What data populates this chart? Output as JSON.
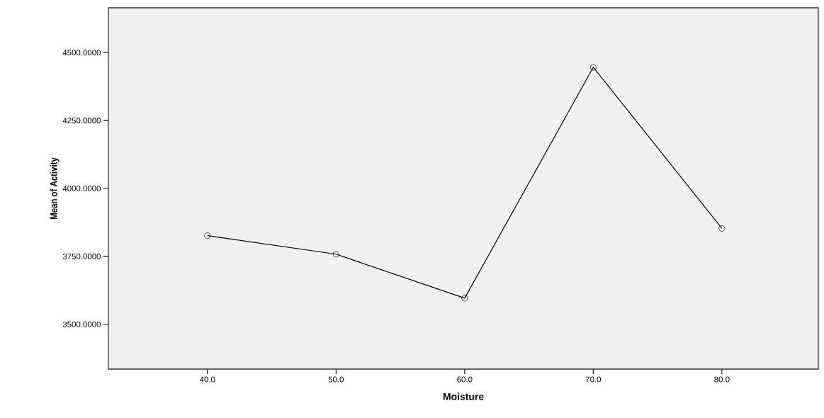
{
  "chart_data": {
    "type": "line",
    "xlabel": "Moisture",
    "ylabel": "Mean of Activity",
    "x": [
      40,
      50,
      60,
      70,
      80
    ],
    "series": [
      {
        "color": "#000000",
        "values": [
          3826,
          3758,
          3596,
          4446,
          3853
        ]
      }
    ],
    "xlim": [
      32.3,
      87.5
    ],
    "ylim": [
      3335,
      4665
    ],
    "xticks": [
      {
        "value": 40,
        "label": "40.0"
      },
      {
        "value": 50,
        "label": "50.0"
      },
      {
        "value": 60,
        "label": "60.0"
      },
      {
        "value": 70,
        "label": "70.0"
      },
      {
        "value": 80,
        "label": "80.0"
      }
    ],
    "yticks": [
      {
        "value": 3500,
        "label": "3500.0000"
      },
      {
        "value": 3750,
        "label": "3750.0000"
      },
      {
        "value": 4000,
        "label": "4000.0000"
      },
      {
        "value": 4250,
        "label": "4250.0000"
      },
      {
        "value": 4500,
        "label": "4500.0000"
      }
    ],
    "marker": "circle",
    "line_style": "solid"
  }
}
